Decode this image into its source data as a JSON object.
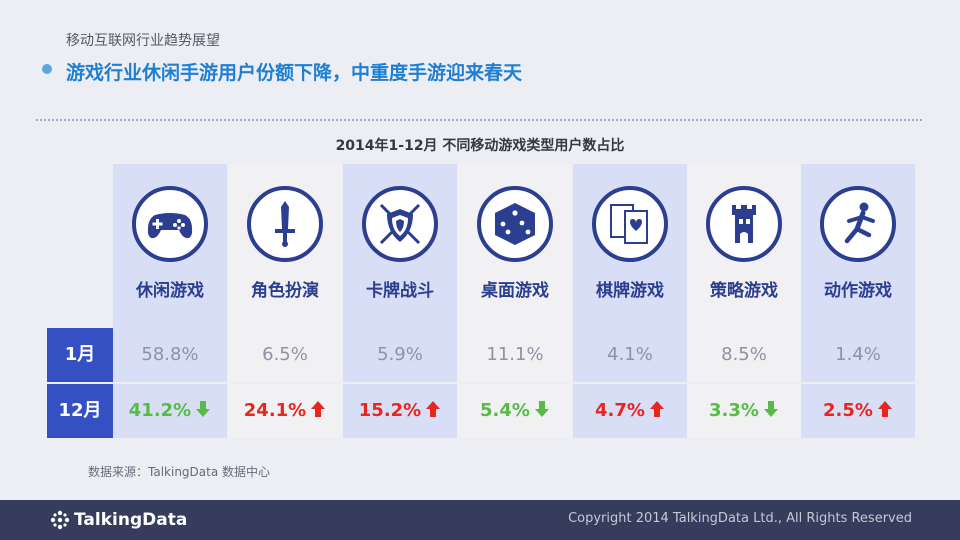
{
  "header": {
    "subtitle": "移动互联网行业趋势展望",
    "headline": "游戏行业休闲手游用户份额下降，中重度手游迎来春天"
  },
  "table": {
    "title": "2014年1-12月 不同移动游戏类型用户数占比",
    "row_labels": [
      "1月",
      "12月"
    ],
    "columns": [
      {
        "label": "休闲游戏",
        "icon": "gamepad-icon",
        "jan": "58.8%",
        "dec": "41.2%",
        "trend": "down"
      },
      {
        "label": "角色扮演",
        "icon": "sword-icon",
        "jan": "6.5%",
        "dec": "24.1%",
        "trend": "up"
      },
      {
        "label": "卡牌战斗",
        "icon": "shield-swords-icon",
        "jan": "5.9%",
        "dec": "15.2%",
        "trend": "up"
      },
      {
        "label": "桌面游戏",
        "icon": "dice-icon",
        "jan": "11.1%",
        "dec": "5.4%",
        "trend": "down"
      },
      {
        "label": "棋牌游戏",
        "icon": "playing-cards-icon",
        "jan": "4.1%",
        "dec": "4.7%",
        "trend": "up"
      },
      {
        "label": "策略游戏",
        "icon": "castle-tower-icon",
        "jan": "8.5%",
        "dec": "3.3%",
        "trend": "down"
      },
      {
        "label": "动作游戏",
        "icon": "running-figure-icon",
        "jan": "1.4%",
        "dec": "2.5%",
        "trend": "up"
      }
    ]
  },
  "source": "数据来源：TalkingData 数据中心",
  "footer": {
    "brand": "TalkingData",
    "copyright": "Copyright 2014 TalkingData Ltd., All Rights Reserved"
  },
  "colors": {
    "accent": "#1f7fd3",
    "icon_blue": "#2b3e90",
    "row_header": "#3550c2",
    "up": "#e8251f",
    "down": "#56bc46",
    "footer_bg": "#353c5c"
  }
}
